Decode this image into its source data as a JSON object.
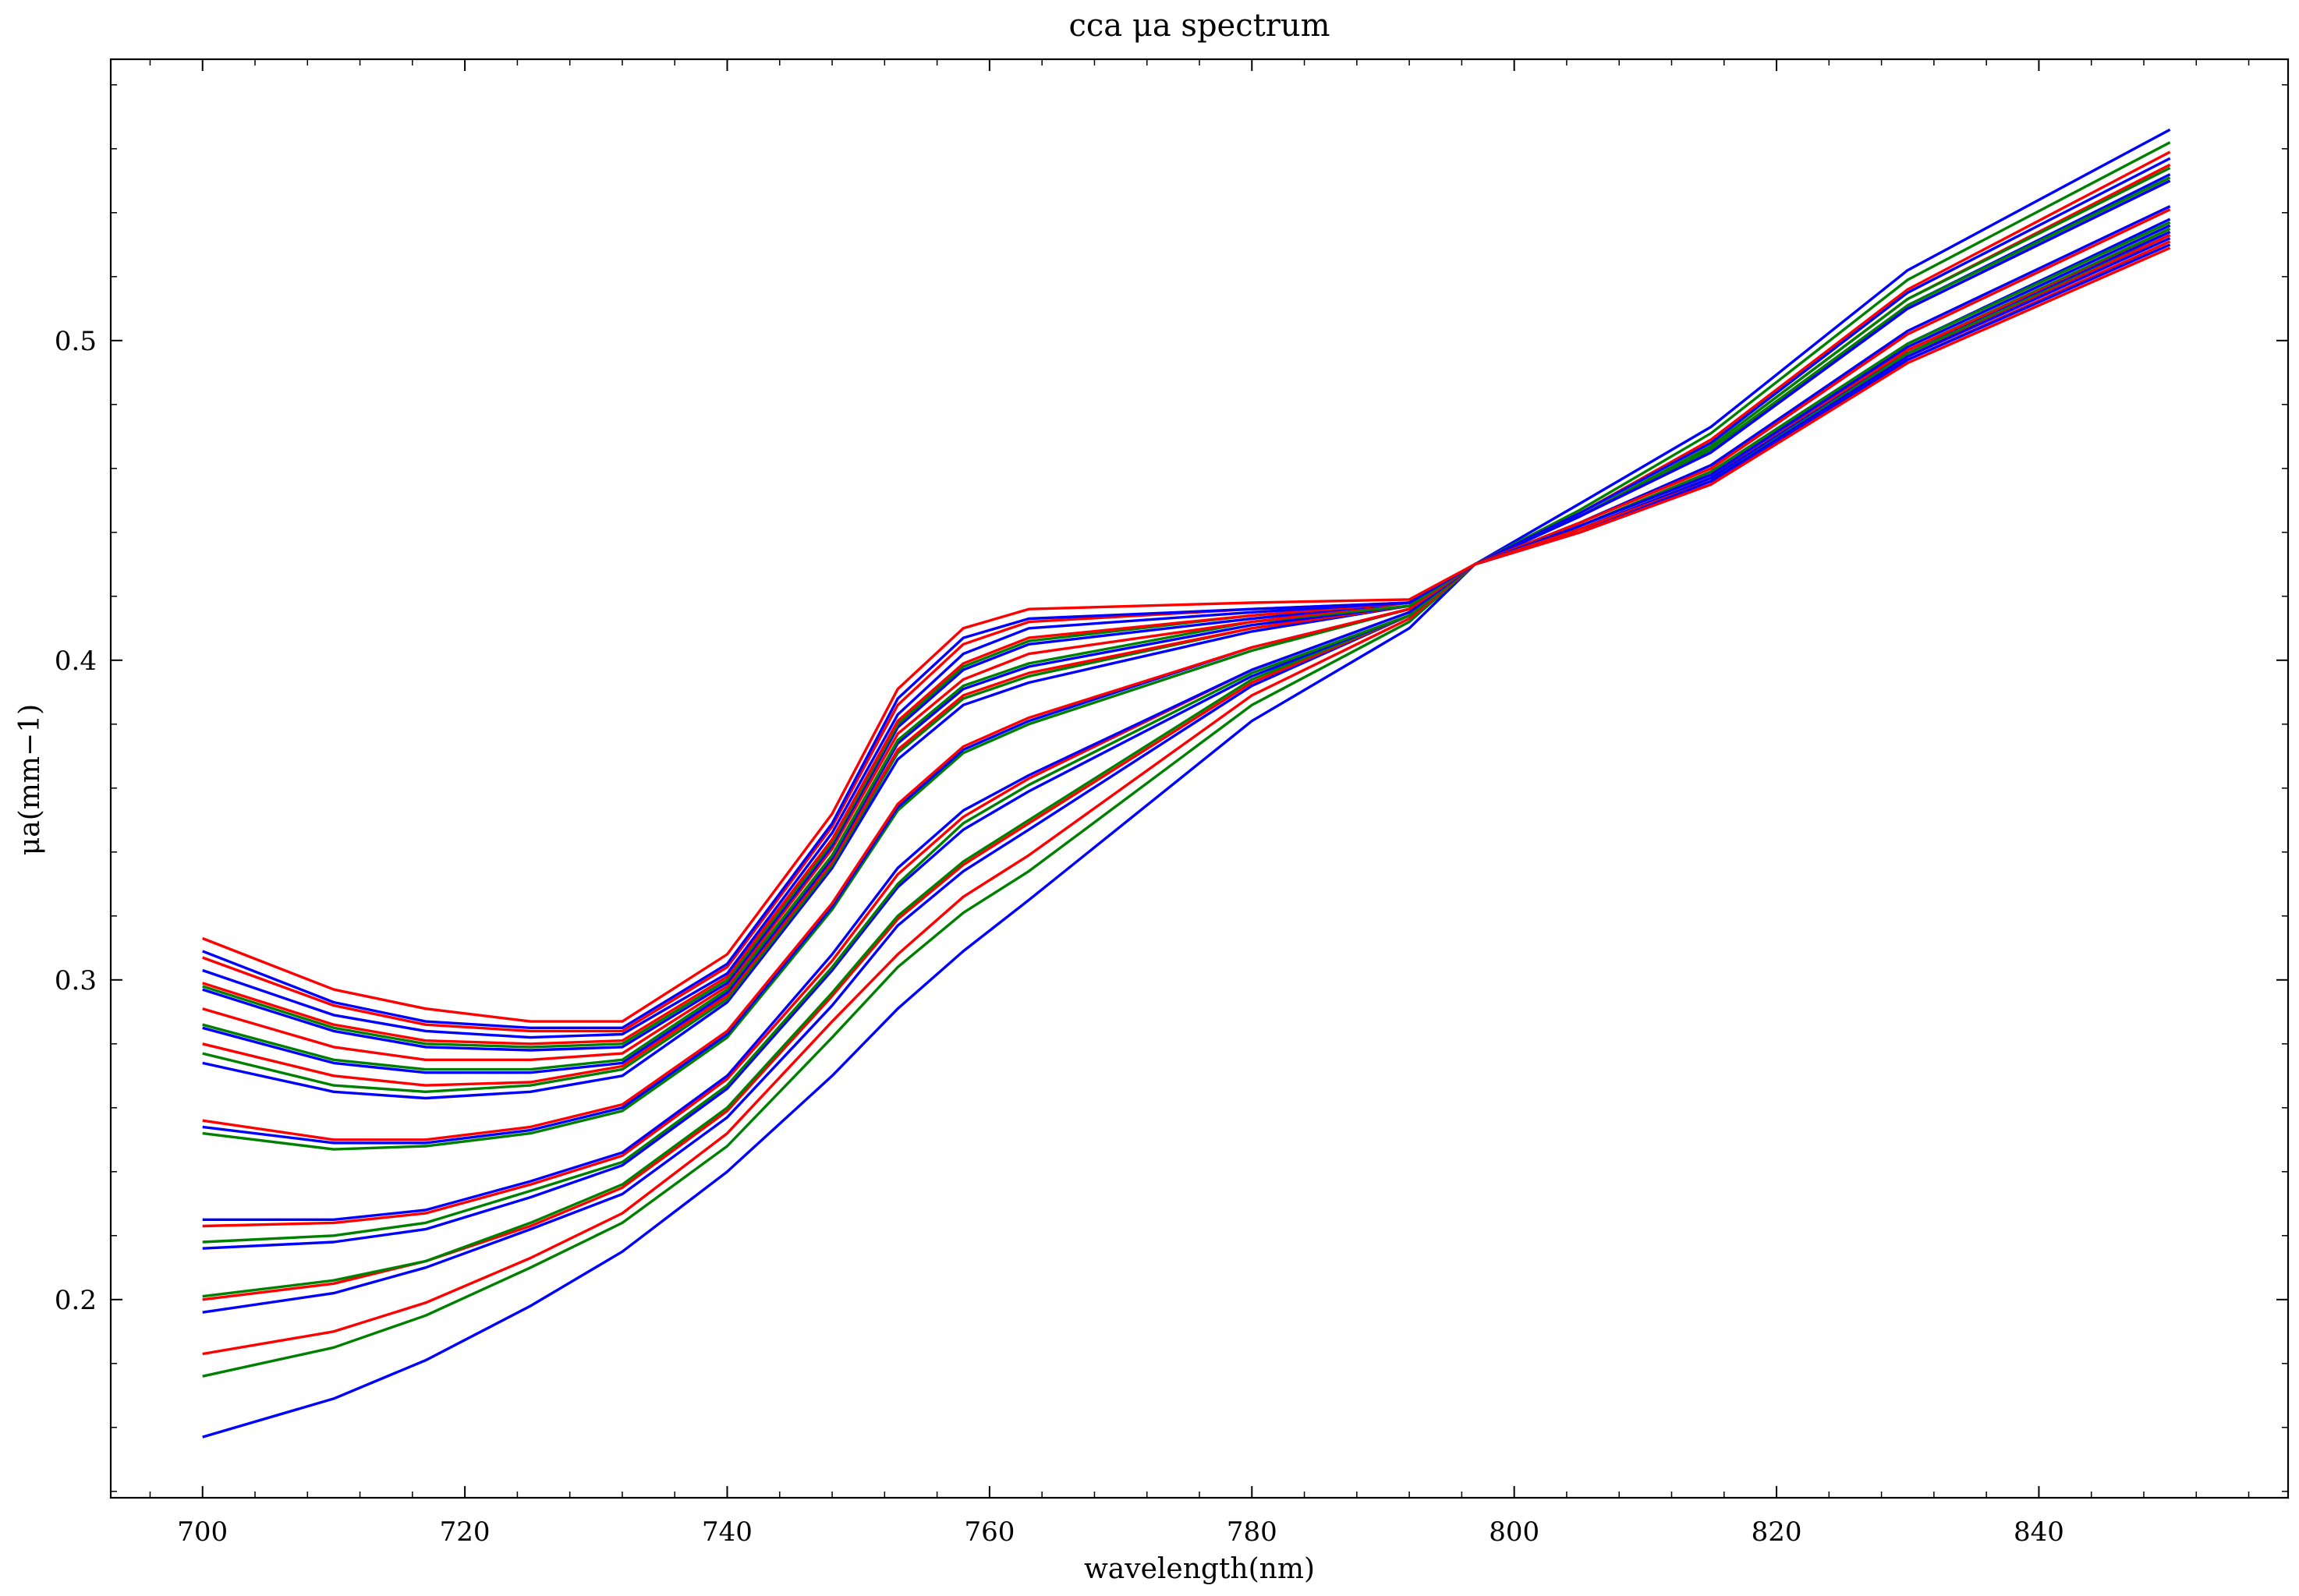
{
  "chart_data": {
    "type": "line",
    "title": "cca μa spectrum",
    "xlabel": "wavelength(nm)",
    "ylabel": "μa(mm−1)",
    "xlim": [
      693,
      859
    ],
    "ylim": [
      0.138,
      0.588
    ],
    "grid": false,
    "x_ticks": [
      700,
      720,
      740,
      760,
      780,
      800,
      820,
      840
    ],
    "y_ticks": [
      0.2,
      0.3,
      0.4,
      0.5
    ],
    "x_tick_labels": [
      "700",
      "720",
      "740",
      "760",
      "780",
      "800",
      "820",
      "840"
    ],
    "y_tick_labels": [
      "0.2",
      "0.3",
      "0.4",
      "0.5"
    ],
    "colors": {
      "blue": "#0000ff",
      "green": "#008000",
      "red": "#ff0000"
    },
    "x": [
      700,
      710,
      717,
      725,
      732,
      740,
      748,
      753,
      758,
      763,
      780,
      792,
      797,
      805,
      815,
      830,
      850
    ],
    "series": [
      {
        "color": "blue",
        "values": [
          0.157,
          0.169,
          0.181,
          0.198,
          0.215,
          0.24,
          0.27,
          0.291,
          0.309,
          0.325,
          0.381,
          0.41,
          0.43,
          0.449,
          0.473,
          0.522,
          0.566
        ]
      },
      {
        "color": "green",
        "values": [
          0.176,
          0.185,
          0.195,
          0.21,
          0.224,
          0.248,
          0.282,
          0.304,
          0.321,
          0.334,
          0.386,
          0.412,
          0.43,
          0.447,
          0.471,
          0.519,
          0.562
        ]
      },
      {
        "color": "red",
        "values": [
          0.183,
          0.19,
          0.199,
          0.213,
          0.227,
          0.252,
          0.287,
          0.308,
          0.326,
          0.339,
          0.389,
          0.413,
          0.43,
          0.446,
          0.469,
          0.516,
          0.559
        ]
      },
      {
        "color": "blue",
        "values": [
          0.196,
          0.202,
          0.21,
          0.222,
          0.233,
          0.257,
          0.292,
          0.317,
          0.334,
          0.347,
          0.392,
          0.414,
          0.43,
          0.446,
          0.468,
          0.515,
          0.557
        ]
      },
      {
        "color": "red",
        "values": [
          0.2,
          0.205,
          0.212,
          0.223,
          0.235,
          0.259,
          0.295,
          0.319,
          0.336,
          0.349,
          0.393,
          0.414,
          0.43,
          0.445,
          0.467,
          0.513,
          0.555
        ]
      },
      {
        "color": "green",
        "values": [
          0.201,
          0.206,
          0.212,
          0.224,
          0.236,
          0.26,
          0.296,
          0.32,
          0.337,
          0.35,
          0.394,
          0.414,
          0.43,
          0.445,
          0.467,
          0.513,
          0.554
        ]
      },
      {
        "color": "blue",
        "values": [
          0.216,
          0.218,
          0.222,
          0.232,
          0.242,
          0.266,
          0.303,
          0.329,
          0.347,
          0.359,
          0.395,
          0.414,
          0.43,
          0.445,
          0.466,
          0.511,
          0.552
        ]
      },
      {
        "color": "green",
        "values": [
          0.218,
          0.22,
          0.224,
          0.234,
          0.243,
          0.267,
          0.304,
          0.33,
          0.349,
          0.361,
          0.396,
          0.414,
          0.43,
          0.445,
          0.466,
          0.511,
          0.551
        ]
      },
      {
        "color": "red",
        "values": [
          0.223,
          0.224,
          0.227,
          0.236,
          0.245,
          0.269,
          0.306,
          0.333,
          0.351,
          0.363,
          0.397,
          0.415,
          0.43,
          0.445,
          0.465,
          0.51,
          0.55
        ]
      },
      {
        "color": "blue",
        "values": [
          0.225,
          0.225,
          0.228,
          0.237,
          0.246,
          0.27,
          0.308,
          0.335,
          0.353,
          0.364,
          0.397,
          0.415,
          0.43,
          0.445,
          0.465,
          0.51,
          0.55
        ]
      },
      {
        "color": "green",
        "values": [
          0.252,
          0.247,
          0.248,
          0.252,
          0.259,
          0.282,
          0.322,
          0.353,
          0.371,
          0.38,
          0.403,
          0.416,
          0.43,
          0.443,
          0.461,
          0.503,
          0.542
        ]
      },
      {
        "color": "blue",
        "values": [
          0.254,
          0.249,
          0.249,
          0.253,
          0.26,
          0.283,
          0.323,
          0.354,
          0.372,
          0.381,
          0.404,
          0.416,
          0.43,
          0.443,
          0.461,
          0.503,
          0.542
        ]
      },
      {
        "color": "red",
        "values": [
          0.256,
          0.25,
          0.25,
          0.254,
          0.261,
          0.284,
          0.324,
          0.355,
          0.373,
          0.382,
          0.404,
          0.416,
          0.43,
          0.443,
          0.46,
          0.502,
          0.541
        ]
      },
      {
        "color": "blue",
        "values": [
          0.274,
          0.265,
          0.263,
          0.265,
          0.27,
          0.293,
          0.335,
          0.369,
          0.386,
          0.393,
          0.409,
          0.417,
          0.43,
          0.442,
          0.459,
          0.499,
          0.538
        ]
      },
      {
        "color": "green",
        "values": [
          0.277,
          0.267,
          0.265,
          0.267,
          0.272,
          0.294,
          0.336,
          0.371,
          0.388,
          0.395,
          0.41,
          0.417,
          0.43,
          0.442,
          0.459,
          0.499,
          0.537
        ]
      },
      {
        "color": "red",
        "values": [
          0.28,
          0.27,
          0.267,
          0.268,
          0.273,
          0.295,
          0.337,
          0.372,
          0.389,
          0.396,
          0.41,
          0.417,
          0.43,
          0.442,
          0.458,
          0.498,
          0.536
        ]
      },
      {
        "color": "blue",
        "values": [
          0.285,
          0.274,
          0.271,
          0.271,
          0.274,
          0.296,
          0.338,
          0.374,
          0.391,
          0.398,
          0.411,
          0.417,
          0.43,
          0.442,
          0.458,
          0.498,
          0.536
        ]
      },
      {
        "color": "green",
        "values": [
          0.286,
          0.275,
          0.272,
          0.272,
          0.275,
          0.297,
          0.339,
          0.375,
          0.392,
          0.399,
          0.412,
          0.417,
          0.43,
          0.441,
          0.457,
          0.497,
          0.535
        ]
      },
      {
        "color": "red",
        "values": [
          0.291,
          0.279,
          0.275,
          0.275,
          0.277,
          0.298,
          0.341,
          0.377,
          0.394,
          0.402,
          0.412,
          0.418,
          0.43,
          0.441,
          0.457,
          0.497,
          0.534
        ]
      },
      {
        "color": "blue",
        "values": [
          0.297,
          0.284,
          0.279,
          0.278,
          0.279,
          0.299,
          0.342,
          0.379,
          0.397,
          0.405,
          0.413,
          0.418,
          0.43,
          0.441,
          0.457,
          0.496,
          0.534
        ]
      },
      {
        "color": "green",
        "values": [
          0.298,
          0.285,
          0.28,
          0.279,
          0.28,
          0.3,
          0.343,
          0.38,
          0.398,
          0.406,
          0.414,
          0.418,
          0.43,
          0.441,
          0.456,
          0.496,
          0.533
        ]
      },
      {
        "color": "red",
        "values": [
          0.299,
          0.286,
          0.281,
          0.28,
          0.281,
          0.301,
          0.344,
          0.381,
          0.399,
          0.407,
          0.414,
          0.418,
          0.43,
          0.441,
          0.456,
          0.495,
          0.533
        ]
      },
      {
        "color": "blue",
        "values": [
          0.303,
          0.289,
          0.284,
          0.282,
          0.283,
          0.302,
          0.346,
          0.383,
          0.402,
          0.41,
          0.415,
          0.418,
          0.43,
          0.44,
          0.456,
          0.495,
          0.532
        ]
      },
      {
        "color": "red",
        "values": [
          0.307,
          0.292,
          0.286,
          0.284,
          0.284,
          0.304,
          0.348,
          0.386,
          0.405,
          0.412,
          0.416,
          0.418,
          0.43,
          0.44,
          0.455,
          0.494,
          0.531
        ]
      },
      {
        "color": "blue",
        "values": [
          0.309,
          0.293,
          0.287,
          0.285,
          0.285,
          0.305,
          0.349,
          0.388,
          0.407,
          0.413,
          0.416,
          0.418,
          0.43,
          0.44,
          0.455,
          0.494,
          0.53
        ]
      },
      {
        "color": "red",
        "values": [
          0.313,
          0.297,
          0.291,
          0.287,
          0.287,
          0.308,
          0.352,
          0.391,
          0.41,
          0.416,
          0.418,
          0.419,
          0.43,
          0.44,
          0.455,
          0.493,
          0.529
        ]
      }
    ]
  }
}
